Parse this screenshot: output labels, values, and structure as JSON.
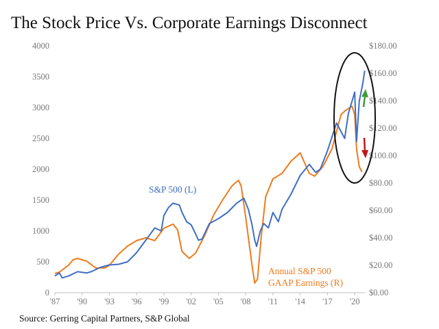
{
  "title": "The Stock Price Vs. Corporate Earnings Disconnect",
  "source": "Source: Gerring Capital Partners, S&P Global",
  "colors": {
    "sp500": "#3e6ec4",
    "earnings": "#ee7a1c",
    "up_arrow": "#3f9a36",
    "down_arrow": "#c01818",
    "ellipse": "#111111"
  },
  "chart_data": {
    "type": "line",
    "title": "The Stock Price Vs. Corporate Earnings Disconnect",
    "x_ticks": [
      "'87",
      "'90",
      "'93",
      "'96",
      "'99",
      "'02",
      "'05",
      "'08",
      "'11",
      "'14",
      "'17",
      "'20"
    ],
    "x_range": [
      1987,
      2021.2
    ],
    "y_left": {
      "ticks": [
        "0",
        "500",
        "1000",
        "1500",
        "2000",
        "2500",
        "3000",
        "3500",
        "4000"
      ],
      "range": [
        0,
        4000
      ]
    },
    "y_right": {
      "ticks": [
        "$0.00",
        "$20.00",
        "$40.00",
        "$60.00",
        "$80.00",
        "$100.00",
        "$120.00",
        "$140.00",
        "$160.00",
        "$180.00"
      ],
      "range": [
        0,
        180
      ]
    },
    "grid": false,
    "annotations": [
      "S&P 500 (L)",
      "Annual S&P 500",
      "GAAP Earnings (R)"
    ],
    "series": [
      {
        "name": "S&P 500 (L)",
        "axis": "left",
        "points": [
          [
            1987.0,
            270
          ],
          [
            1987.5,
            320
          ],
          [
            1987.8,
            240
          ],
          [
            1988.5,
            270
          ],
          [
            1989.5,
            340
          ],
          [
            1990.5,
            320
          ],
          [
            1991.0,
            340
          ],
          [
            1992.0,
            410
          ],
          [
            1993.0,
            450
          ],
          [
            1994.0,
            460
          ],
          [
            1995.0,
            500
          ],
          [
            1996.0,
            650
          ],
          [
            1997.0,
            850
          ],
          [
            1998.0,
            1050
          ],
          [
            1998.7,
            1000
          ],
          [
            1999.0,
            1250
          ],
          [
            1999.5,
            1380
          ],
          [
            2000.0,
            1450
          ],
          [
            2000.7,
            1420
          ],
          [
            2001.0,
            1300
          ],
          [
            2001.5,
            1150
          ],
          [
            2002.0,
            1100
          ],
          [
            2002.5,
            950
          ],
          [
            2002.8,
            850
          ],
          [
            2003.2,
            870
          ],
          [
            2004.0,
            1120
          ],
          [
            2005.0,
            1200
          ],
          [
            2006.0,
            1300
          ],
          [
            2007.0,
            1450
          ],
          [
            2007.8,
            1530
          ],
          [
            2008.3,
            1350
          ],
          [
            2008.7,
            1100
          ],
          [
            2009.0,
            850
          ],
          [
            2009.2,
            750
          ],
          [
            2009.6,
            1000
          ],
          [
            2010.0,
            1120
          ],
          [
            2010.5,
            1050
          ],
          [
            2011.0,
            1300
          ],
          [
            2011.6,
            1150
          ],
          [
            2012.0,
            1350
          ],
          [
            2013.0,
            1600
          ],
          [
            2014.0,
            1900
          ],
          [
            2015.0,
            2080
          ],
          [
            2015.7,
            1950
          ],
          [
            2016.2,
            2000
          ],
          [
            2017.0,
            2300
          ],
          [
            2018.0,
            2750
          ],
          [
            2018.9,
            2500
          ],
          [
            2019.3,
            2900
          ],
          [
            2020.0,
            3250
          ],
          [
            2020.2,
            2450
          ],
          [
            2020.5,
            3100
          ],
          [
            2020.9,
            3400
          ],
          [
            2021.1,
            3600
          ]
        ]
      },
      {
        "name": "Annual S&P 500 GAAP Earnings (R)",
        "axis": "right",
        "points": [
          [
            1987.0,
            14
          ],
          [
            1987.5,
            15
          ],
          [
            1988.5,
            20
          ],
          [
            1989.0,
            24
          ],
          [
            1989.5,
            25
          ],
          [
            1990.5,
            23
          ],
          [
            1991.5,
            18
          ],
          [
            1992.5,
            18
          ],
          [
            1993.0,
            20
          ],
          [
            1994.0,
            28
          ],
          [
            1995.0,
            34
          ],
          [
            1996.0,
            38
          ],
          [
            1997.0,
            40
          ],
          [
            1998.0,
            38
          ],
          [
            1999.0,
            47
          ],
          [
            2000.0,
            50
          ],
          [
            2000.5,
            46
          ],
          [
            2001.0,
            30
          ],
          [
            2001.8,
            25
          ],
          [
            2002.5,
            29
          ],
          [
            2003.5,
            42
          ],
          [
            2004.5,
            57
          ],
          [
            2005.5,
            68
          ],
          [
            2006.5,
            78
          ],
          [
            2007.2,
            82
          ],
          [
            2007.5,
            78
          ],
          [
            2008.0,
            55
          ],
          [
            2008.7,
            20
          ],
          [
            2009.0,
            7
          ],
          [
            2009.3,
            10
          ],
          [
            2009.7,
            40
          ],
          [
            2010.2,
            70
          ],
          [
            2011.0,
            83
          ],
          [
            2012.0,
            87
          ],
          [
            2013.0,
            96
          ],
          [
            2014.0,
            102
          ],
          [
            2015.0,
            87
          ],
          [
            2015.6,
            85
          ],
          [
            2016.5,
            92
          ],
          [
            2017.5,
            105
          ],
          [
            2018.5,
            130
          ],
          [
            2019.0,
            133
          ],
          [
            2019.7,
            136
          ],
          [
            2020.0,
            130
          ],
          [
            2020.2,
            105
          ],
          [
            2020.5,
            92
          ],
          [
            2020.8,
            88
          ]
        ]
      }
    ]
  }
}
